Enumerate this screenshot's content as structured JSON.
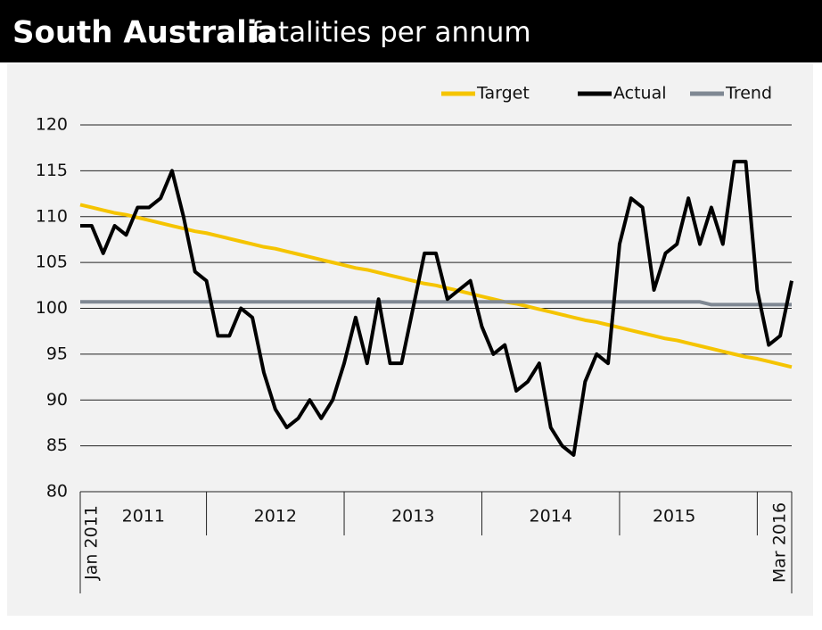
{
  "chart_data": {
    "type": "line",
    "title": "South Australia",
    "subtitle": "fatalities per annum",
    "categories": [
      "Jan 2011",
      null,
      null,
      null,
      null,
      null,
      null,
      null,
      null,
      null,
      null,
      null,
      null,
      null,
      null,
      null,
      null,
      null,
      null,
      null,
      null,
      null,
      null,
      null,
      null,
      null,
      null,
      null,
      null,
      null,
      null,
      null,
      null,
      null,
      null,
      null,
      null,
      null,
      null,
      null,
      null,
      null,
      null,
      null,
      null,
      null,
      null,
      null,
      null,
      null,
      null,
      null,
      null,
      null,
      null,
      null,
      null,
      null,
      null,
      null,
      null,
      null,
      "Mar 2016"
    ],
    "year_labels": [
      "2011",
      "2012",
      "2013",
      "2014",
      "2015"
    ],
    "series": [
      {
        "name": "Target",
        "color": "#f5c400",
        "values": [
          111.3,
          111.0,
          110.7,
          110.4,
          110.2,
          109.9,
          109.6,
          109.3,
          109.0,
          108.7,
          108.4,
          108.2,
          107.9,
          107.6,
          107.3,
          107.0,
          106.7,
          106.5,
          106.2,
          105.9,
          105.6,
          105.3,
          105.0,
          104.7,
          104.4,
          104.2,
          103.9,
          103.6,
          103.3,
          103.0,
          102.7,
          102.5,
          102.2,
          101.9,
          101.6,
          101.3,
          101.0,
          100.7,
          100.5,
          100.2,
          99.9,
          99.6,
          99.3,
          99.0,
          98.7,
          98.5,
          98.2,
          97.9,
          97.6,
          97.3,
          97.0,
          96.7,
          96.5,
          96.2,
          95.9,
          95.6,
          95.3,
          95.0,
          94.7,
          94.5,
          94.2,
          93.9,
          93.6
        ]
      },
      {
        "name": "Actual",
        "color": "#000000",
        "values": [
          109,
          109,
          106,
          109,
          108,
          111,
          111,
          112,
          115,
          110,
          104,
          103,
          97,
          97,
          100,
          99,
          93,
          89,
          87,
          88,
          90,
          88,
          90,
          94,
          99,
          94,
          101,
          94,
          94,
          100,
          106,
          106,
          101,
          102,
          103,
          98,
          95,
          96,
          91,
          92,
          94,
          87,
          85,
          84,
          92,
          95,
          94,
          107,
          112,
          111,
          102,
          106,
          107,
          112,
          107,
          111,
          107,
          116,
          116,
          102,
          96,
          97,
          103
        ]
      },
      {
        "name": "Trend",
        "color": "#7f8893",
        "values": [
          100.7,
          100.7,
          100.7,
          100.7,
          100.7,
          100.7,
          100.7,
          100.7,
          100.7,
          100.7,
          100.7,
          100.7,
          100.7,
          100.7,
          100.7,
          100.7,
          100.7,
          100.7,
          100.7,
          100.7,
          100.7,
          100.7,
          100.7,
          100.7,
          100.7,
          100.7,
          100.7,
          100.7,
          100.7,
          100.7,
          100.7,
          100.7,
          100.7,
          100.7,
          100.7,
          100.7,
          100.7,
          100.7,
          100.7,
          100.7,
          100.7,
          100.7,
          100.7,
          100.7,
          100.7,
          100.7,
          100.7,
          100.7,
          100.7,
          100.7,
          100.7,
          100.7,
          100.7,
          100.7,
          100.7,
          100.4,
          100.4,
          100.4,
          100.4,
          100.4,
          100.4,
          100.4,
          100.4
        ]
      }
    ],
    "ylim": [
      80,
      120
    ],
    "yticks": [
      80,
      85,
      90,
      95,
      100,
      105,
      110,
      115,
      120
    ],
    "grid": true,
    "legend": "top-right"
  }
}
